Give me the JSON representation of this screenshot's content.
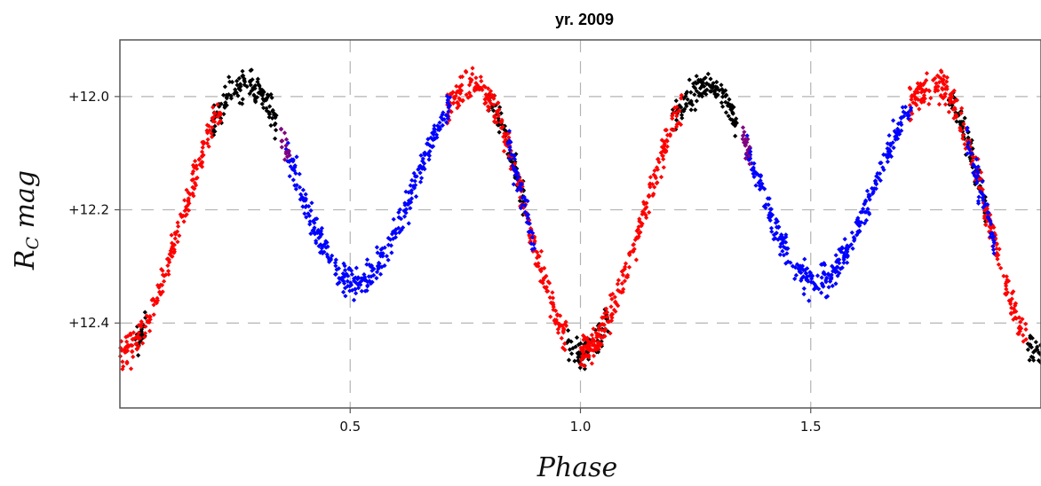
{
  "chart_data": {
    "type": "scatter",
    "title": "yr. 2009",
    "xlabel": "Phase",
    "ylabel": {
      "main": "R",
      "subscript": "C",
      "rest": " mag"
    },
    "xlim": [
      0.0,
      2.0
    ],
    "ylim": [
      12.55,
      11.9
    ],
    "y_inverted": true,
    "x_ticks": [
      0.5,
      1.0,
      1.5
    ],
    "x_tick_labels": [
      "0.5",
      "1.0",
      "1.5"
    ],
    "y_ticks": [
      12.0,
      12.2,
      12.4
    ],
    "y_tick_labels": [
      "+12.0",
      "+12.2",
      "+12.4"
    ],
    "grid": true,
    "grid_style": "dashed",
    "legend": "none",
    "light_curve": {
      "period_phase": 1.0,
      "minima": [
        {
          "phase": 0.0,
          "mag": 12.45
        },
        {
          "phase": 0.51,
          "mag": 12.33
        }
      ],
      "maxima": [
        {
          "phase": 0.27,
          "mag": 11.98
        },
        {
          "phase": 0.77,
          "mag": 11.98
        }
      ],
      "scatter_mag": 0.025
    },
    "series": [
      {
        "color": "#000000",
        "segments": [
          [
            0.03,
            0.06
          ],
          [
            0.2,
            0.34
          ],
          [
            0.8,
            0.88
          ],
          [
            0.97,
            1.02
          ]
        ]
      },
      {
        "color": "#ff0000",
        "segments": [
          [
            0.0,
            0.22
          ],
          [
            0.71,
            0.97
          ],
          [
            1.0,
            1.04
          ]
        ]
      },
      {
        "color": "#0000ff",
        "segments": [
          [
            0.36,
            0.72
          ],
          [
            0.84,
            0.9
          ]
        ]
      },
      {
        "color": "#800080",
        "segments": [
          [
            0.35,
            0.37
          ]
        ]
      }
    ],
    "colors": {
      "frame": "#555555",
      "grid": "#b4b4b4",
      "background": "#ffffff"
    }
  }
}
